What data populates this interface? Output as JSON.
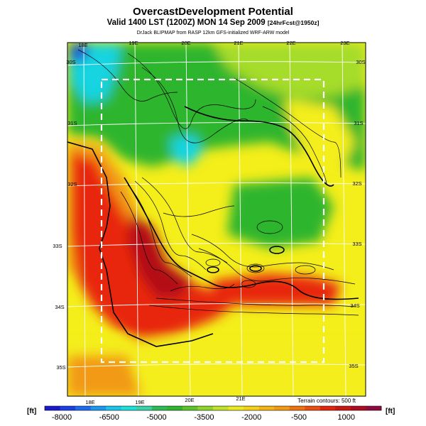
{
  "header": {
    "title": "OvercastDevelopment Potential",
    "subtitle": "Valid 1400 LST (1200Z) MON 14 Sep 2009",
    "subtitle_suffix": "[24hrFcst@1950z]",
    "credit": "DrJack BLIPMAP from RASP 12km GFS-initialized WRF-ARW model"
  },
  "map": {
    "lon_top_labels": [
      "18E",
      "19E",
      "20E",
      "21E",
      "22E",
      "23E"
    ],
    "lon_bottom_labels": [
      "18E",
      "19E",
      "20E",
      "21E"
    ],
    "lat_right_labels": [
      "30S",
      "31S",
      "32S",
      "33S",
      "34S",
      "35S"
    ],
    "lat_left_labels": [
      "30S",
      "31S",
      "32S",
      "33S",
      "34S",
      "35S"
    ],
    "terrain_note": "Terrain contours: 500 ft",
    "colors": {
      "deep_blue": "#1b3fd8",
      "cyan": "#18d4e0",
      "green": "#2fb52f",
      "lime": "#a6dc2c",
      "yellow": "#f4ee1a",
      "orange": "#f29a14",
      "red": "#e82810",
      "dark_red": "#b30d18"
    }
  },
  "legend": {
    "unit_left": "[ft]",
    "unit_right": "[ft]",
    "tick_labels": [
      "-8000",
      "-6500",
      "-5000",
      "-3500",
      "-2000",
      "-500",
      "1000"
    ],
    "swatches": [
      "#1a1acc",
      "#1c3ee2",
      "#1e6aee",
      "#1c98f0",
      "#1ac4ec",
      "#1ee0d8",
      "#3ad2a8",
      "#2fbc58",
      "#2fb52f",
      "#5ec42c",
      "#8ed42c",
      "#c0e22a",
      "#eaea20",
      "#f4d21a",
      "#f4b416",
      "#f29a14",
      "#ee7410",
      "#ea4e10",
      "#e2260e",
      "#c81812",
      "#ae0c22",
      "#8e0a40"
    ]
  }
}
